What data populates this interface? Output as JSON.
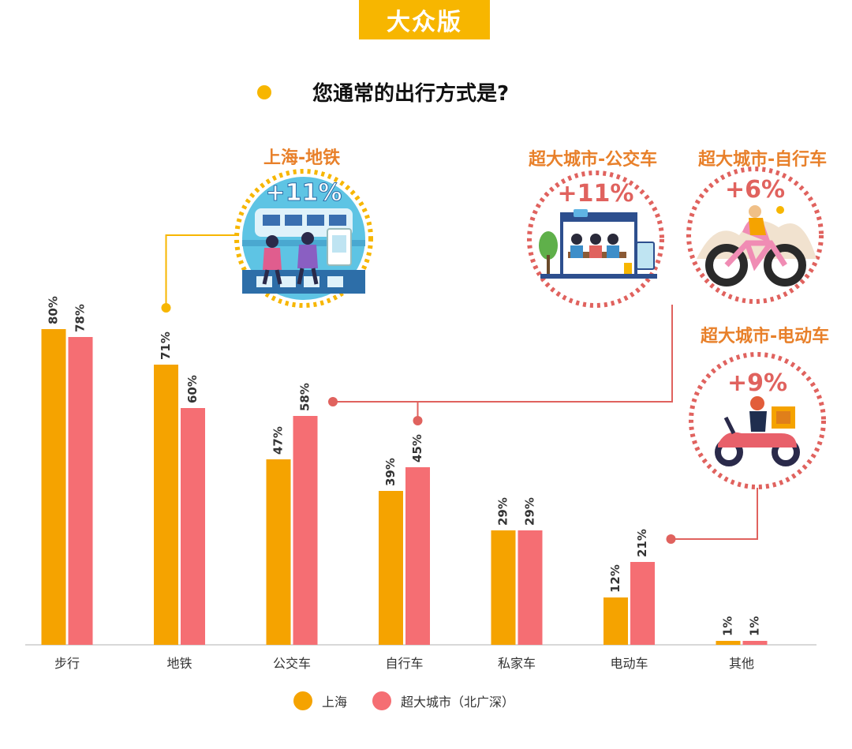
{
  "badge": "大众版",
  "question": "您通常的出行方式是?",
  "colors": {
    "shanghai": "#f5a300",
    "megacity": "#f56e73",
    "accent": "#f7b600",
    "callout": "#e8802a",
    "pin": "#e0625e"
  },
  "chart_data": {
    "type": "bar",
    "categories": [
      "步行",
      "地铁",
      "公交车",
      "自行车",
      "私家车",
      "电动车",
      "其他"
    ],
    "series": [
      {
        "name": "上海",
        "values": [
          80,
          71,
          47,
          39,
          29,
          12,
          1
        ]
      },
      {
        "name": "超大城市（北广深）",
        "values": [
          78,
          60,
          58,
          45,
          29,
          21,
          1
        ]
      }
    ],
    "data_labels": [
      [
        "80%",
        "71%",
        "47%",
        "39%",
        "29%",
        "12%",
        "1%"
      ],
      [
        "78%",
        "60%",
        "58%",
        "45%",
        "29%",
        "21%",
        "1%"
      ]
    ],
    "ylim": [
      0,
      100
    ],
    "legend": "bottom",
    "grid": false
  },
  "callouts": [
    {
      "label": "上海-地铁",
      "value": "+11%",
      "icon": "subway-icon"
    },
    {
      "label": "超大城市-公交车",
      "value": "+11%",
      "icon": "bus-stop-icon"
    },
    {
      "label": "超大城市-自行车",
      "value": "+6%",
      "icon": "bicycle-icon"
    },
    {
      "label": "超大城市-电动车",
      "value": "+9%",
      "icon": "ebike-icon"
    }
  ],
  "legend": [
    {
      "label": "上海"
    },
    {
      "label": "超大城市（北广深）"
    }
  ]
}
